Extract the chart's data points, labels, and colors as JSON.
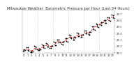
{
  "title": "Milwaukee Weather  Barometric Pressure per Hour (Last 24 Hours)",
  "hours": [
    0,
    1,
    2,
    3,
    4,
    5,
    6,
    7,
    8,
    9,
    10,
    11,
    12,
    13,
    14,
    15,
    16,
    17,
    18,
    19,
    20,
    21,
    22,
    23
  ],
  "pressure": [
    29.14,
    29.16,
    29.12,
    29.18,
    29.15,
    29.2,
    29.22,
    29.19,
    29.24,
    29.28,
    29.25,
    29.3,
    29.35,
    29.32,
    29.38,
    29.36,
    29.42,
    29.4,
    29.48,
    29.52,
    29.55,
    29.58,
    29.62,
    29.66
  ],
  "scatter_y": [
    29.13,
    29.18,
    29.11,
    29.2,
    29.14,
    29.22,
    29.24,
    29.17,
    29.26,
    29.3,
    29.23,
    29.32,
    29.37,
    29.3,
    29.4,
    29.34,
    29.44,
    29.38,
    29.5,
    29.54,
    29.53,
    29.6,
    29.64,
    29.68
  ],
  "scatter_y2": [
    29.15,
    29.14,
    29.13,
    29.16,
    29.16,
    29.18,
    29.2,
    29.21,
    29.22,
    29.26,
    29.27,
    29.28,
    29.33,
    29.34,
    29.36,
    29.38,
    29.4,
    29.42,
    29.46,
    29.5,
    29.57,
    29.56,
    29.6,
    29.64
  ],
  "dot_color": "#000000",
  "trend_color": "#dd0000",
  "background_color": "#ffffff",
  "grid_color": "#bbbbbb",
  "ylim_min": 29.1,
  "ylim_max": 29.75,
  "ytick_values": [
    29.1,
    29.2,
    29.3,
    29.4,
    29.5,
    29.6,
    29.7
  ],
  "vgrid_positions": [
    3.5,
    7.5,
    11.5,
    15.5,
    19.5
  ],
  "title_fontsize": 3.8,
  "tick_fontsize": 2.8,
  "dot_size": 2.0
}
